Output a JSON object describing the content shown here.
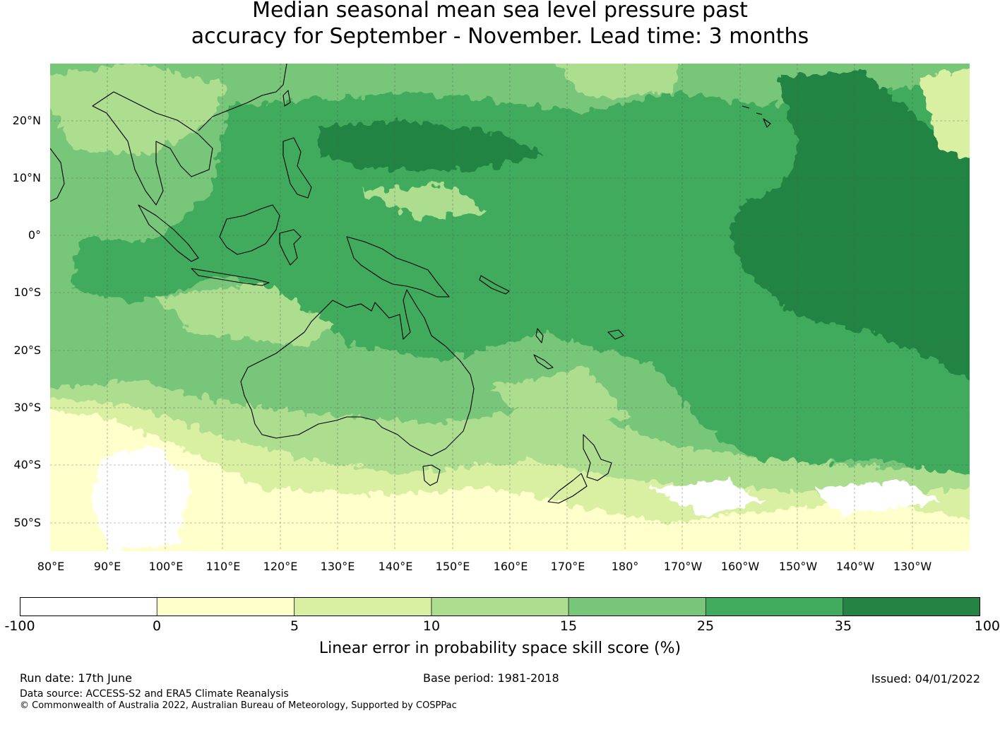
{
  "title_line1": "Median seasonal mean sea level pressure past",
  "title_line2": "accuracy for September - November. Lead time: 3 months",
  "map": {
    "lon_range_degE": [
      80,
      240
    ],
    "lat_range": [
      -55,
      30
    ],
    "lat_labels": [
      "20°N",
      "10°N",
      "0°",
      "10°S",
      "20°S",
      "30°S",
      "40°S",
      "50°S"
    ],
    "lon_labels": [
      "80°E",
      "90°E",
      "100°E",
      "110°E",
      "120°E",
      "130°E",
      "140°E",
      "150°E",
      "160°E",
      "170°E",
      "180°",
      "170°W",
      "160°W",
      "150°W",
      "140°W",
      "130°W"
    ],
    "gridlines": "dashed"
  },
  "colorbar": {
    "label": "Linear error in probability space skill score (%)",
    "ticks": [
      "-100",
      "0",
      "5",
      "10",
      "15",
      "25",
      "35",
      "100"
    ],
    "colors": [
      "#ffffff",
      "#ffffcc",
      "#d9f0a3",
      "#addd8e",
      "#78c679",
      "#41ab5d",
      "#238443"
    ]
  },
  "footer": {
    "run_date": "Run date: 17th June",
    "base_period": "Base period: 1981-2018",
    "issued": "Issued: 04/01/2022",
    "data_source": "Data source: ACCESS-S2 and ERA5 Climate Reanalysis",
    "copyright": "© Commonwealth of Australia 2022, Australian Bureau of Meteorology, Supported by COSPPac"
  }
}
